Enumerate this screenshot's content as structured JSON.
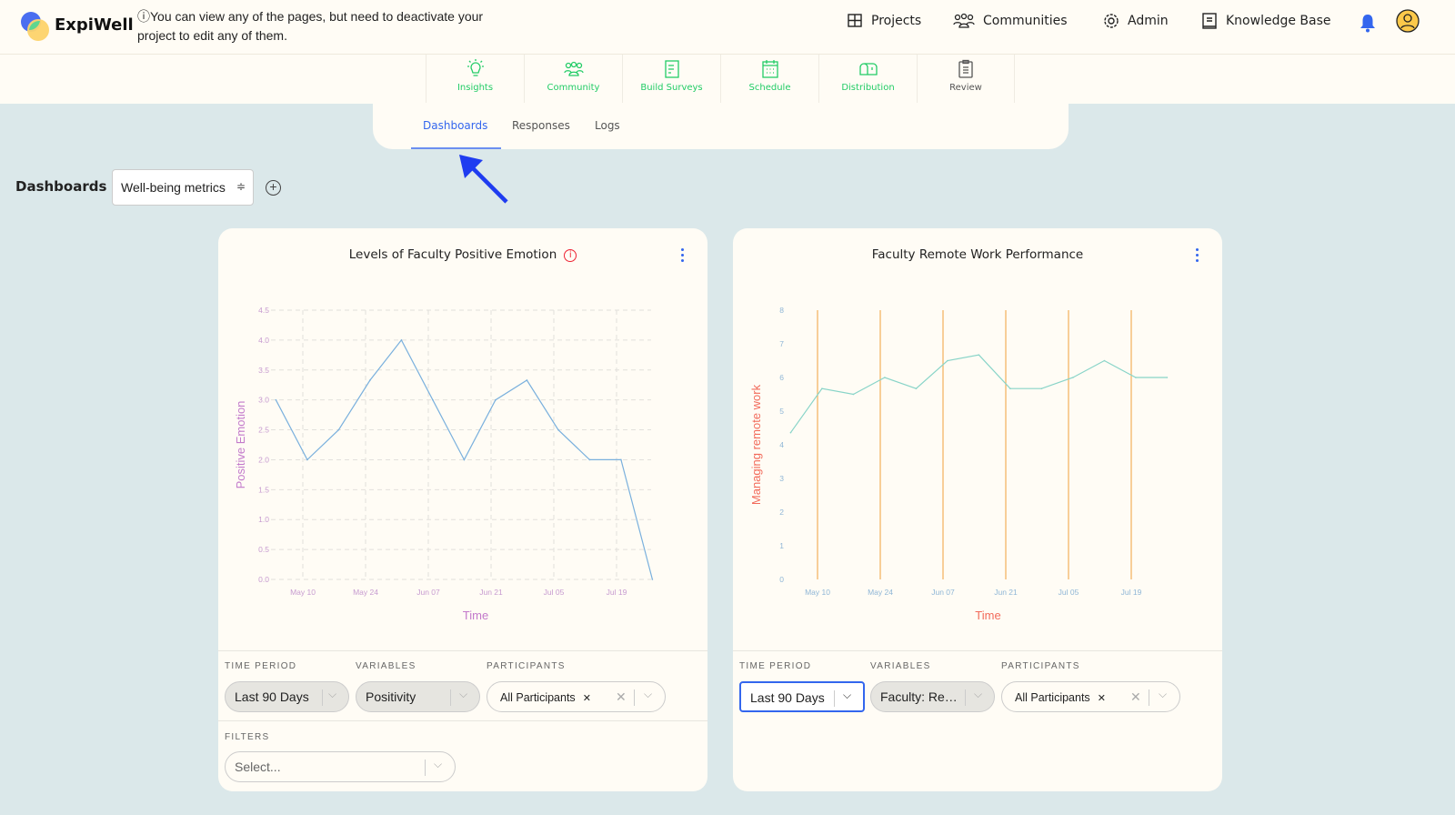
{
  "header": {
    "brand": "ExpiWell",
    "notice": "ⓘYou can view any of the pages, but need to deactivate your project to edit any of them.",
    "nav": [
      {
        "label": "Projects",
        "icon": "grid-icon"
      },
      {
        "label": "Communities",
        "icon": "people-icon"
      },
      {
        "label": "Admin",
        "icon": "gear-icon"
      },
      {
        "label": "Knowledge Base",
        "icon": "book-icon"
      }
    ],
    "notification_icon": "bell-icon",
    "avatar_icon": "user-circle-icon"
  },
  "toolbar": [
    {
      "label": "Insights",
      "icon": "lightbulb-icon"
    },
    {
      "label": "Community",
      "icon": "people-icon"
    },
    {
      "label": "Build Surveys",
      "icon": "document-icon"
    },
    {
      "label": "Schedule",
      "icon": "calendar-icon"
    },
    {
      "label": "Distribution",
      "icon": "mailbox-icon"
    },
    {
      "label": "Review",
      "icon": "clipboard-icon"
    }
  ],
  "tabs": [
    {
      "label": "Dashboards",
      "active": true
    },
    {
      "label": "Responses"
    },
    {
      "label": "Logs"
    }
  ],
  "dashboard": {
    "label": "Dashboards",
    "selected": "Well-being metrics",
    "add_icon": "plus-circle-icon"
  },
  "colors": {
    "accent": "#3366ee",
    "toolbar_green": "#22cc66",
    "line1": "#7ab0dd",
    "line2": "#88d4c8",
    "grid_orange": "#f4b05a",
    "axis1": "#c37acb",
    "axis2": "#f26b5b"
  },
  "cards": [
    {
      "title": "Levels of Faculty Positive Emotion",
      "has_info": true,
      "time_period": "Last 90 Days",
      "variables": "Positivity",
      "participants": "All Participants",
      "filters_label": "FILTERS",
      "filters_placeholder": "Select..."
    },
    {
      "title": "Faculty Remote Work Performance",
      "has_info": false,
      "time_period": "Last 90 Days",
      "variables": "Faculty: Re…",
      "participants": "All Participants"
    }
  ],
  "labels": {
    "time_period": "TIME PERIOD",
    "variables": "VARIABLES",
    "participants": "PARTICIPANTS"
  },
  "chart_data": [
    {
      "type": "line",
      "title": "Levels of Faculty Positive Emotion",
      "xlabel": "Time",
      "ylabel": "Positive Emotion",
      "ylim": [
        0,
        4.5
      ],
      "yticks": [
        "0.0",
        "0.5",
        "1.0",
        "1.5",
        "2.0",
        "2.5",
        "3.0",
        "3.5",
        "4.0",
        "4.5"
      ],
      "xticks": [
        "May 10",
        "May 24",
        "Jun 07",
        "Jun 21",
        "Jul 05",
        "Jul 19"
      ],
      "grid": "dashed",
      "x": [
        "May 04",
        "May 11",
        "May 18",
        "May 25",
        "Jun 01",
        "Jun 08",
        "Jun 15",
        "Jun 22",
        "Jun 29",
        "Jul 06",
        "Jul 13",
        "Jul 20",
        "Jul 27"
      ],
      "values": [
        3.0,
        2.0,
        2.5,
        3.33,
        4.0,
        3.0,
        2.0,
        3.0,
        3.33,
        2.5,
        2.0,
        2.0,
        0.0
      ]
    },
    {
      "type": "line",
      "title": "Faculty Remote Work Performance",
      "xlabel": "Time",
      "ylabel": "Managing remote work",
      "ylim": [
        0,
        8
      ],
      "yticks": [
        "0",
        "1",
        "2",
        "3",
        "4",
        "5",
        "6",
        "7",
        "8"
      ],
      "xticks": [
        "May 10",
        "May 24",
        "Jun 07",
        "Jun 21",
        "Jul 05",
        "Jul 19"
      ],
      "grid": "vertical",
      "x": [
        "May 04",
        "May 11",
        "May 18",
        "May 25",
        "Jun 01",
        "Jun 08",
        "Jun 15",
        "Jun 22",
        "Jun 29",
        "Jul 06",
        "Jul 13",
        "Jul 20",
        "Jul 27"
      ],
      "values": [
        4.36,
        5.67,
        5.5,
        6.0,
        5.67,
        6.5,
        6.67,
        5.67,
        5.67,
        6.0,
        6.5,
        6.0,
        6.0
      ]
    }
  ]
}
